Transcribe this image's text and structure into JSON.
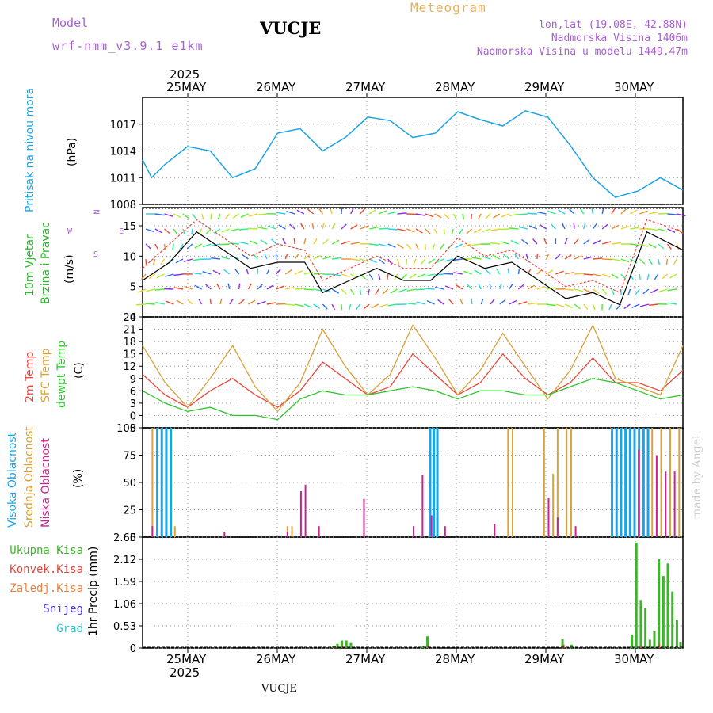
{
  "header": {
    "model_label": "Model",
    "model_name": "wrf-nmm_v3.9.1  e1km",
    "station": "VUCJE",
    "meteogram": "Meteogram",
    "lonlat": "lon,lat (19.08E, 42.88N)",
    "altitude": "Nadmorska Visina 1406m",
    "model_altitude": "Nadmorska Visina u modelu 1449.47m",
    "year_top": "2025",
    "year_bottom": "2025",
    "footer_station": "VUCJE",
    "watermark": "made by Angel"
  },
  "colors": {
    "pressure": "#1ba3e6",
    "wind_label": "#2ab52a",
    "speed_line": "#000000",
    "gust": "#e8463c",
    "temp2m": "#e8463c",
    "sfc_temp": "#d9a13a",
    "dewpt": "#2fc42f",
    "cloud_high": "#1ba3e6",
    "cloud_mid": "#d9a13a",
    "cloud_low": "#c8238f",
    "precip_total": "#3cb52a",
    "precip_conv": "#e8463c",
    "precip_frozen": "#f0823c",
    "snow": "#4a3ad6",
    "hail": "#2ec4c4",
    "model_text": "#a85fd6",
    "meteogram_text": "#e8b05a"
  },
  "chart_data": [
    {
      "type": "line",
      "name": "pressure",
      "ylabel_side": "Pritisak na nivou mora",
      "ylabel_unit": "(hPa)",
      "ylim": [
        1008,
        1020
      ],
      "yticks": [
        1008,
        1011,
        1014,
        1017
      ],
      "x_days": [
        0,
        0.1,
        0.25,
        0.5,
        0.75,
        1.0,
        1.25,
        1.5,
        1.75,
        2.0,
        2.25,
        2.5,
        2.75,
        3.0,
        3.25,
        3.5,
        3.75,
        4.0,
        4.25,
        4.5,
        4.75,
        5.0,
        5.25,
        5.5,
        5.75,
        6.0
      ],
      "values": [
        1013,
        1011,
        1012.5,
        1014.5,
        1014,
        1011,
        1012,
        1016,
        1016.5,
        1014,
        1015.5,
        1017.8,
        1017.4,
        1015.5,
        1016,
        1018.4,
        1017.5,
        1016.8,
        1018.5,
        1017.8,
        1014.6,
        1011,
        1008.8,
        1009.5,
        1011,
        1009.6
      ]
    },
    {
      "type": "line",
      "name": "wind",
      "ylabel_side": [
        "10m Vjetar",
        "Brzina i Pravac"
      ],
      "ylabel_unit": "(m/s)",
      "ylim": [
        0,
        18
      ],
      "yticks": [
        0,
        5,
        10,
        15
      ],
      "compass": [
        "N",
        "E",
        "S",
        "W"
      ],
      "x_days": [
        0,
        0.3,
        0.6,
        0.9,
        1.2,
        1.5,
        1.8,
        2.0,
        2.3,
        2.6,
        2.9,
        3.2,
        3.5,
        3.8,
        4.1,
        4.4,
        4.7,
        5.0,
        5.3,
        5.6,
        6.0
      ],
      "speed": [
        6,
        9,
        14,
        11,
        8,
        9,
        9,
        4,
        6,
        8,
        6,
        6,
        10,
        8,
        9,
        6,
        3,
        4,
        2,
        14,
        11
      ],
      "gust": [
        8,
        12,
        16,
        13,
        10,
        12,
        11,
        6,
        8,
        10,
        8,
        8,
        13,
        10,
        11,
        8,
        5,
        6,
        4,
        16,
        14
      ]
    },
    {
      "type": "line",
      "name": "temperature",
      "ylabel_side": [
        "2m Temp",
        "SFC Temp",
        "dewpt Temp"
      ],
      "ylabel_unit": "(C)",
      "ylim": [
        -3,
        24
      ],
      "yticks": [
        -3,
        0,
        3,
        6,
        9,
        12,
        15,
        18,
        21,
        24
      ],
      "x_days": [
        0,
        0.25,
        0.5,
        0.75,
        1.0,
        1.25,
        1.5,
        1.75,
        2.0,
        2.25,
        2.5,
        2.75,
        3.0,
        3.25,
        3.5,
        3.75,
        4.0,
        4.25,
        4.5,
        4.75,
        5.0,
        5.25,
        5.5,
        5.75,
        6.0
      ],
      "series": [
        {
          "name": "2m Temp",
          "values": [
            10,
            5,
            2,
            6,
            9,
            5,
            2,
            6,
            13,
            9,
            5,
            7,
            15,
            10,
            5,
            8,
            15,
            9,
            5,
            8,
            14,
            8,
            8,
            6,
            11
          ]
        },
        {
          "name": "SFC Temp",
          "values": [
            17,
            8,
            2,
            9,
            17,
            7,
            1,
            8,
            21,
            12,
            5,
            10,
            22,
            14,
            5,
            11,
            20,
            12,
            4,
            11,
            22,
            9,
            7,
            5,
            17
          ]
        },
        {
          "name": "dewpt Temp",
          "values": [
            6,
            3,
            1,
            2,
            0,
            0,
            -1,
            4,
            6,
            5,
            5,
            6,
            7,
            6,
            4,
            6,
            6,
            5,
            5,
            7,
            9,
            8,
            6,
            4,
            5
          ]
        }
      ]
    },
    {
      "type": "bar",
      "name": "cloud_cover",
      "ylabel_side": [
        "Visoka Oblacnost",
        "Srednja Oblacnost",
        "Niska Oblacnost"
      ],
      "ylabel_unit": "(%)",
      "ylim": [
        0,
        100
      ],
      "yticks": [
        0,
        25,
        50,
        75,
        100
      ],
      "high": [
        [
          0.15,
          100
        ],
        [
          0.2,
          100
        ],
        [
          0.25,
          100
        ],
        [
          0.3,
          100
        ],
        [
          3.18,
          100
        ],
        [
          3.22,
          100
        ],
        [
          3.26,
          100
        ],
        [
          5.2,
          100
        ],
        [
          5.25,
          100
        ],
        [
          5.3,
          100
        ],
        [
          5.35,
          100
        ],
        [
          5.4,
          100
        ],
        [
          5.45,
          100
        ],
        [
          5.5,
          100
        ],
        [
          5.55,
          100
        ],
        [
          5.6,
          100
        ]
      ],
      "mid": [
        [
          0.1,
          100
        ],
        [
          0.35,
          10
        ],
        [
          1.6,
          10
        ],
        [
          1.65,
          10
        ],
        [
          4.05,
          100
        ],
        [
          4.1,
          100
        ],
        [
          4.45,
          100
        ],
        [
          4.55,
          58
        ],
        [
          4.6,
          100
        ],
        [
          4.7,
          100
        ],
        [
          4.75,
          100
        ],
        [
          5.65,
          100
        ],
        [
          5.75,
          100
        ],
        [
          5.85,
          100
        ],
        [
          5.95,
          100
        ]
      ],
      "low": [
        [
          0.1,
          10
        ],
        [
          0.9,
          5
        ],
        [
          1.6,
          5
        ],
        [
          1.75,
          42
        ],
        [
          1.8,
          48
        ],
        [
          1.95,
          10
        ],
        [
          2.45,
          35
        ],
        [
          3.0,
          10
        ],
        [
          3.1,
          57
        ],
        [
          3.2,
          20
        ],
        [
          3.35,
          10
        ],
        [
          3.9,
          12
        ],
        [
          4.5,
          36
        ],
        [
          4.6,
          18
        ],
        [
          4.8,
          10
        ],
        [
          5.5,
          80
        ],
        [
          5.7,
          75
        ],
        [
          5.8,
          60
        ],
        [
          5.9,
          60
        ]
      ]
    },
    {
      "type": "bar",
      "name": "precipitation",
      "ylabel_unit": "1hr Precip (mm)",
      "legend": [
        "Ukupna Kisa",
        "Konvek.Kisa",
        "Zaledj.Kisa",
        "Snijeg",
        "Grad"
      ],
      "ylim": [
        0,
        2.65
      ],
      "yticks": [
        0,
        0.53,
        1.06,
        1.59,
        2.12,
        2.65
      ],
      "total": [
        [
          2.1,
          0.05
        ],
        [
          2.15,
          0.1
        ],
        [
          2.2,
          0.18
        ],
        [
          2.25,
          0.18
        ],
        [
          2.3,
          0.12
        ],
        [
          3.1,
          0.05
        ],
        [
          3.15,
          0.28
        ],
        [
          4.65,
          0.21
        ],
        [
          4.75,
          0.08
        ],
        [
          5.42,
          0.32
        ],
        [
          5.47,
          2.52
        ],
        [
          5.52,
          1.15
        ],
        [
          5.57,
          0.95
        ],
        [
          5.62,
          0.2
        ],
        [
          5.67,
          0.4
        ],
        [
          5.72,
          2.12
        ],
        [
          5.77,
          1.72
        ],
        [
          5.82,
          2.02
        ],
        [
          5.87,
          1.35
        ],
        [
          5.92,
          0.68
        ],
        [
          5.96,
          0.14
        ]
      ],
      "convective": [
        [
          2.12,
          0.04
        ],
        [
          2.2,
          0.06
        ],
        [
          3.15,
          0.05
        ],
        [
          4.66,
          0.08
        ],
        [
          5.52,
          0.05
        ],
        [
          5.72,
          0.1
        ]
      ]
    }
  ],
  "x_axis": {
    "days": [
      "25MAY",
      "26MAY",
      "27MAY",
      "28MAY",
      "29MAY",
      "30MAY"
    ],
    "range_days": [
      -0.5,
      5.5
    ]
  }
}
